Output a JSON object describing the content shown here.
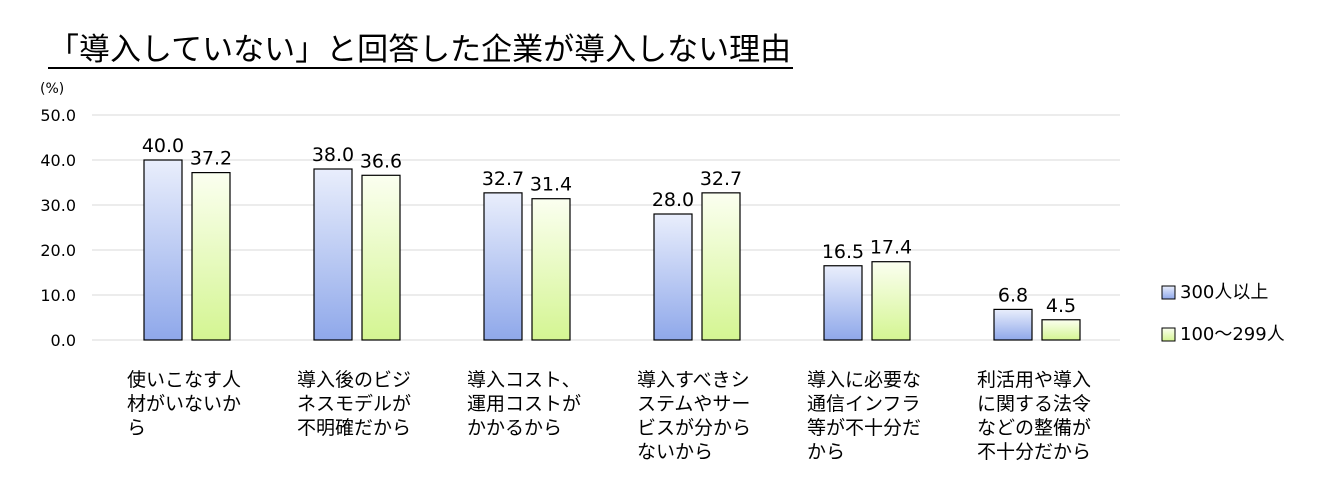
{
  "chart_data": {
    "type": "bar",
    "title": "「導入していない」と回答した企業が導入しない理由",
    "unit_label": "(%)",
    "ylim": [
      0,
      50
    ],
    "yticks": [
      "50.0",
      "40.0",
      "30.0",
      "20.0",
      "10.0",
      "0.0"
    ],
    "ytick_values": [
      50,
      40,
      30,
      20,
      10,
      0
    ],
    "grid": true,
    "legend_position": "right",
    "categories": [
      [
        "使いこなす人",
        "材がいないか",
        "ら"
      ],
      [
        "導入後のビジ",
        "ネスモデルが",
        "不明確だから"
      ],
      [
        "導入コスト、",
        "運用コストが",
        "かかるから"
      ],
      [
        "導入すべきシ",
        "ステムやサー",
        "ビスが分から",
        "ないから"
      ],
      [
        "導入に必要な",
        "通信インフラ",
        "等が不十分だ",
        "から"
      ],
      [
        "利活用や導入",
        "に関する法令",
        "などの整備が",
        "不十分だから"
      ]
    ],
    "series": [
      {
        "name": "300人以上",
        "values": [
          40.0,
          38.0,
          32.7,
          28.0,
          16.5,
          6.8
        ],
        "labels": [
          "40.0",
          "38.0",
          "32.7",
          "28.0",
          "16.5",
          "6.8"
        ]
      },
      {
        "name": "100～299人",
        "values": [
          37.2,
          36.6,
          31.4,
          32.7,
          17.4,
          4.5
        ],
        "labels": [
          "37.2",
          "36.6",
          "31.4",
          "32.7",
          "17.4",
          "4.5"
        ]
      }
    ],
    "colors": {
      "series0_top": "#e9eefc",
      "series0_bottom": "#8fa8ea",
      "series1_top": "#fbfff0",
      "series1_bottom": "#d4f592",
      "bar_border": "#000000",
      "grid": "#d9d9d9",
      "title_underline": "#000000"
    }
  }
}
